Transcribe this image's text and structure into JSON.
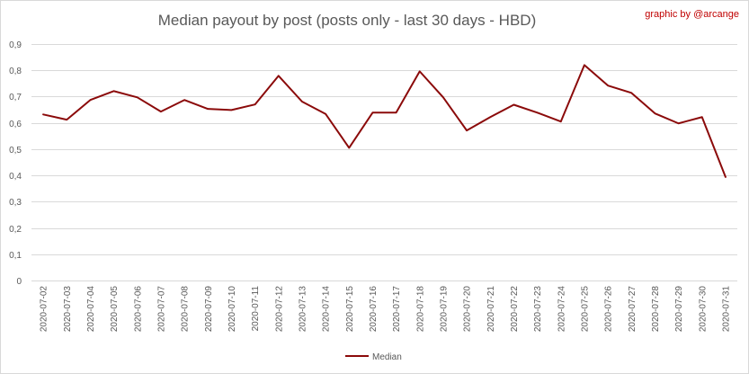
{
  "credit": "graphic by @arcange",
  "colors": {
    "series": "#8b0a0a",
    "credit": "#c00000",
    "grid": "#d9d9d9",
    "text": "#595959"
  },
  "chart_data": {
    "type": "line",
    "title": "Median payout by post (posts only - last 30 days - HBD)",
    "xlabel": "",
    "ylabel": "",
    "ylim": [
      0,
      0.9
    ],
    "yticks": [
      "0",
      "0,1",
      "0,2",
      "0,3",
      "0,4",
      "0,5",
      "0,6",
      "0,7",
      "0,8",
      "0,9"
    ],
    "grid": true,
    "legend_position": "bottom",
    "categories": [
      "2020-07-02",
      "2020-07-03",
      "2020-07-04",
      "2020-07-05",
      "2020-07-06",
      "2020-07-07",
      "2020-07-08",
      "2020-07-09",
      "2020-07-10",
      "2020-07-11",
      "2020-07-12",
      "2020-07-13",
      "2020-07-14",
      "2020-07-15",
      "2020-07-16",
      "2020-07-17",
      "2020-07-18",
      "2020-07-19",
      "2020-07-20",
      "2020-07-21",
      "2020-07-22",
      "2020-07-23",
      "2020-07-24",
      "2020-07-25",
      "2020-07-26",
      "2020-07-27",
      "2020-07-28",
      "2020-07-29",
      "2020-07-30",
      "2020-07-31"
    ],
    "series": [
      {
        "name": "Median",
        "values": [
          0.632,
          0.612,
          0.687,
          0.721,
          0.697,
          0.643,
          0.687,
          0.653,
          0.649,
          0.67,
          0.779,
          0.681,
          0.634,
          0.505,
          0.639,
          0.639,
          0.796,
          0.697,
          0.571,
          0.622,
          0.669,
          0.639,
          0.605,
          0.82,
          0.742,
          0.714,
          0.636,
          0.598,
          0.622,
          0.394
        ]
      }
    ]
  }
}
